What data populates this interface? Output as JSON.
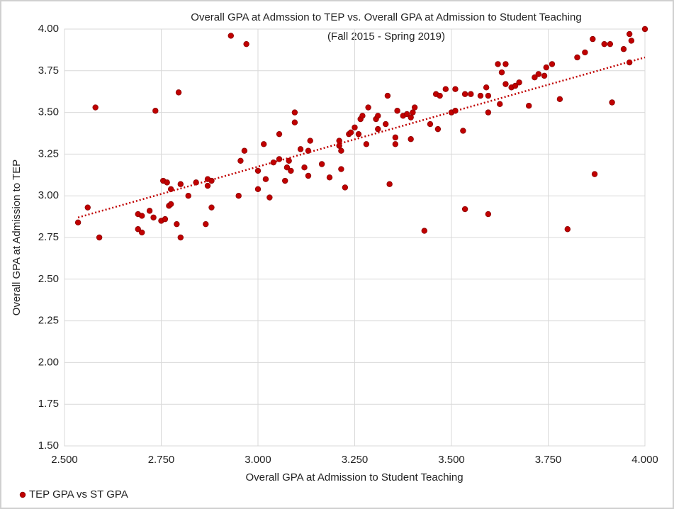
{
  "chart_data": {
    "type": "scatter",
    "title": "Overall GPA at Admssion to TEP vs. Overall GPA at Admission to Student Teaching",
    "subtitle": "(Fall 2015 - Spring 2019)",
    "x_label": "Overall GPA at Admission to Student Teaching",
    "y_label": "Overall GPA at Admission to TEP",
    "xlim": [
      2.5,
      4.0
    ],
    "xticks": [
      {
        "value": 2.5,
        "label": "2.500"
      },
      {
        "value": 2.75,
        "label": "2.750"
      },
      {
        "value": 3,
        "label": "3.000"
      },
      {
        "value": 3.25,
        "label": "3.250"
      },
      {
        "value": 3.5,
        "label": "3.500"
      },
      {
        "value": 3.75,
        "label": "3.750"
      },
      {
        "value": 4,
        "label": "4.000"
      }
    ],
    "ylim": [
      1.5,
      4.0
    ],
    "yticks": [
      {
        "value": 1.5,
        "label": "1.50"
      },
      1.75,
      {
        "value": 2,
        "label": "2.00"
      },
      2.25,
      {
        "value": 2.5,
        "label": "2.50"
      },
      2.75,
      {
        "value": 3,
        "label": "3.00"
      },
      3.25,
      {
        "value": 3.5,
        "label": "3.50"
      },
      3.75,
      {
        "value": 4,
        "label": "4.00"
      }
    ],
    "grid": true,
    "legend": "bottom-left",
    "series": [
      {
        "name": "TEP GPA vs ST GPA",
        "color": "#c00000",
        "x": [
          2.535,
          2.56,
          2.58,
          2.59,
          2.69,
          2.69,
          2.7,
          2.7,
          2.72,
          2.73,
          2.735,
          2.75,
          2.755,
          2.76,
          2.765,
          2.77,
          2.775,
          2.775,
          2.79,
          2.795,
          2.8,
          2.8,
          2.82,
          2.84,
          2.865,
          2.87,
          2.87,
          2.88,
          2.88,
          2.93,
          2.95,
          2.955,
          2.965,
          2.97,
          3.0,
          3.0,
          3.015,
          3.02,
          3.03,
          3.04,
          3.055,
          3.055,
          3.07,
          3.075,
          3.08,
          3.085,
          3.095,
          3.095,
          3.11,
          3.12,
          3.13,
          3.13,
          3.135,
          3.165,
          3.185,
          3.21,
          3.21,
          3.215,
          3.215,
          3.225,
          3.235,
          3.24,
          3.25,
          3.26,
          3.265,
          3.27,
          3.28,
          3.285,
          3.305,
          3.31,
          3.31,
          3.33,
          3.335,
          3.34,
          3.355,
          3.355,
          3.36,
          3.375,
          3.385,
          3.395,
          3.395,
          3.4,
          3.405,
          3.43,
          3.445,
          3.46,
          3.465,
          3.47,
          3.485,
          3.5,
          3.51,
          3.51,
          3.53,
          3.535,
          3.535,
          3.55,
          3.575,
          3.59,
          3.595,
          3.595,
          3.595,
          3.62,
          3.625,
          3.63,
          3.64,
          3.64,
          3.655,
          3.665,
          3.675,
          3.7,
          3.715,
          3.725,
          3.74,
          3.745,
          3.76,
          3.78,
          3.8,
          3.825,
          3.845,
          3.865,
          3.87,
          3.895,
          3.91,
          3.915,
          3.945,
          3.96,
          3.96,
          3.965,
          4.0
        ],
        "values": [
          2.84,
          2.93,
          3.53,
          2.75,
          2.89,
          2.8,
          2.78,
          2.88,
          2.91,
          2.87,
          3.51,
          2.85,
          3.09,
          2.86,
          3.08,
          2.94,
          2.95,
          3.04,
          2.83,
          3.62,
          2.75,
          3.07,
          3.0,
          3.08,
          2.83,
          3.1,
          3.06,
          3.09,
          2.93,
          3.96,
          3.0,
          3.21,
          3.27,
          3.91,
          3.15,
          3.04,
          3.31,
          3.1,
          2.99,
          3.2,
          3.22,
          3.37,
          3.09,
          3.17,
          3.21,
          3.15,
          3.44,
          3.5,
          3.28,
          3.17,
          3.27,
          3.12,
          3.33,
          3.19,
          3.11,
          3.33,
          3.3,
          3.16,
          3.27,
          3.05,
          3.37,
          3.38,
          3.41,
          3.37,
          3.46,
          3.48,
          3.31,
          3.53,
          3.46,
          3.4,
          3.48,
          3.43,
          3.6,
          3.07,
          3.35,
          3.31,
          3.51,
          3.48,
          3.49,
          3.47,
          3.34,
          3.5,
          3.53,
          2.79,
          3.43,
          3.61,
          3.4,
          3.6,
          3.64,
          3.5,
          3.51,
          3.64,
          3.39,
          3.61,
          2.92,
          3.61,
          3.6,
          3.65,
          3.5,
          3.6,
          2.89,
          3.79,
          3.55,
          3.74,
          3.79,
          3.67,
          3.65,
          3.66,
          3.68,
          3.54,
          3.71,
          3.73,
          3.72,
          3.77,
          3.79,
          3.58,
          2.8,
          3.83,
          3.86,
          3.94,
          3.13,
          3.91,
          3.91,
          3.56,
          3.88,
          3.8,
          3.97,
          3.93,
          4.0
        ]
      }
    ],
    "trendline": {
      "x": [
        2.535,
        4.0
      ],
      "y": [
        2.87,
        3.83
      ]
    }
  }
}
